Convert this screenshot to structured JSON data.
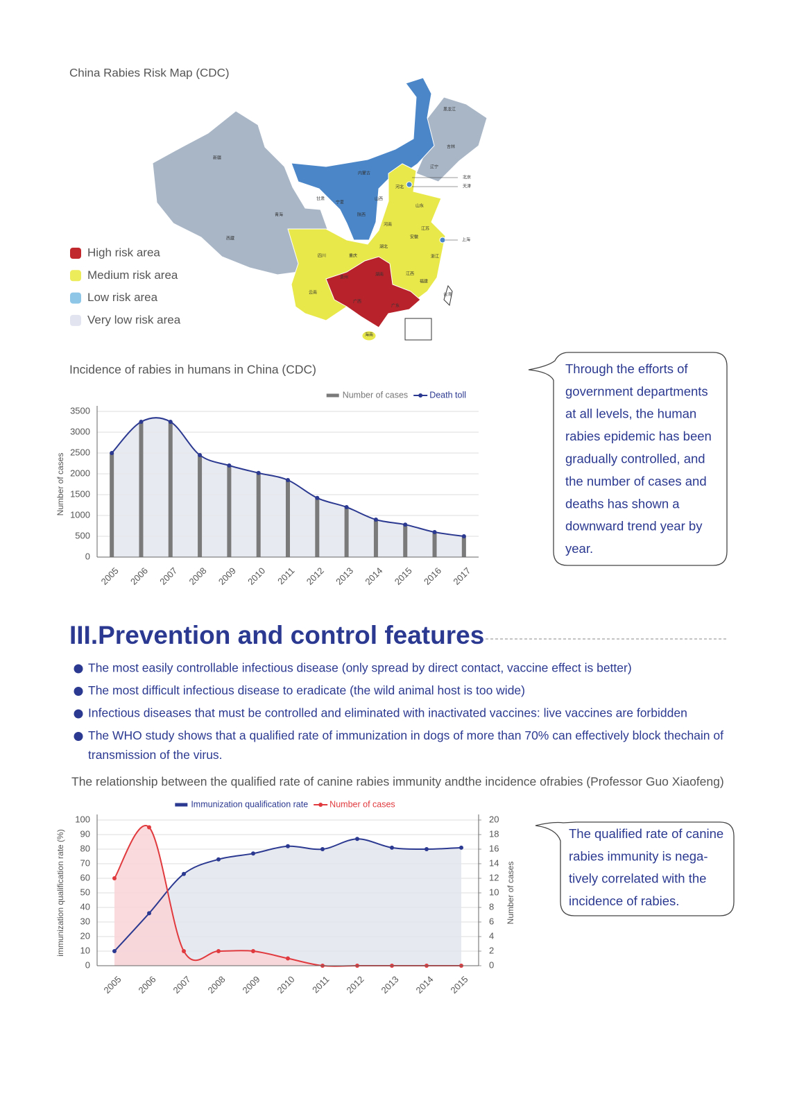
{
  "map": {
    "title": "China Rabies Risk Map (CDC)",
    "legend": [
      {
        "label": "High risk area",
        "color": "#c0282e"
      },
      {
        "label": "Medium risk area",
        "color": "#ecec5a"
      },
      {
        "label": "Low risk area",
        "color": "#8ec6e8"
      },
      {
        "label": "Very low risk area",
        "color": "#e2e4f0"
      }
    ],
    "provinces": [
      "黑龙江",
      "吉林",
      "辽宁",
      "北京",
      "天津",
      "河北",
      "内蒙古",
      "新疆",
      "甘肃",
      "宁夏",
      "青海",
      "西藏",
      "山西",
      "陕西",
      "山东",
      "河南",
      "江苏",
      "安徽",
      "上海",
      "湖北",
      "四川",
      "重庆",
      "浙江",
      "江西",
      "湖南",
      "福建",
      "贵州",
      "云南",
      "广西",
      "广东",
      "台湾",
      "海南"
    ]
  },
  "chart_data": [
    {
      "type": "combo",
      "title": "Incidence of rabies in humans in China (CDC)",
      "y_label": "Number of cases",
      "categories": [
        "2005",
        "2006",
        "2007",
        "2008",
        "2009",
        "2010",
        "2011",
        "2012",
        "2013",
        "2014",
        "2015",
        "2016",
        "2017"
      ],
      "series": [
        {
          "name": "Number of cases",
          "type": "bar",
          "color": "#7a7a7a",
          "values": [
            2500,
            3250,
            3250,
            2450,
            2200,
            2020,
            1850,
            1420,
            1200,
            900,
            780,
            600,
            500
          ]
        },
        {
          "name": "Death toll",
          "type": "line",
          "color": "#2b3990",
          "area_color": "#e4e6ef",
          "values": [
            2500,
            3250,
            3250,
            2450,
            2200,
            2020,
            1850,
            1420,
            1200,
            900,
            780,
            600,
            500
          ]
        }
      ],
      "ylim": [
        0,
        3500
      ],
      "yticks": [
        0,
        500,
        1000,
        1500,
        2000,
        2500,
        3000,
        3500
      ],
      "grid": true,
      "legend": "top-right"
    },
    {
      "type": "line",
      "title": "The relationship between the qualified rate of canine rabies immunity andthe incidence ofrabies (Professor Guo Xiaofeng)",
      "y_label": "immunization qualification rate (%)",
      "y2_label": "Number of cases",
      "categories": [
        "2005",
        "2006",
        "2007",
        "2008",
        "2009",
        "2010",
        "2011",
        "2012",
        "2013",
        "2014",
        "2015"
      ],
      "series": [
        {
          "name": "Immunization qualification rate",
          "type": "line",
          "legend_mark": "bar",
          "color": "#2b3990",
          "area_color": "#e3e5ee",
          "values": [
            10,
            36,
            63,
            73,
            77,
            82,
            80,
            87,
            81,
            80,
            81
          ]
        },
        {
          "name": "Number of cases",
          "type": "line",
          "axis": "y2",
          "color": "#e03a3e",
          "area_color": "#f9d3d6",
          "values": [
            12,
            19,
            2,
            2,
            2,
            1,
            0,
            0,
            0,
            0,
            0
          ]
        }
      ],
      "ylim": [
        0,
        100
      ],
      "yticks": [
        0,
        10,
        20,
        30,
        40,
        50,
        60,
        70,
        80,
        90,
        100
      ],
      "y2lim": [
        0,
        20
      ],
      "y2ticks": [
        0,
        2,
        4,
        6,
        8,
        10,
        12,
        14,
        16,
        18,
        20
      ],
      "grid": true,
      "legend": "top-center"
    }
  ],
  "callouts": [
    [
      "Through the efforts of",
      "government departments",
      "at all levels, the human",
      "rabies epidemic has been",
      "gradually controlled, and",
      "the number of cases and",
      "deaths has shown a",
      "downward trend year by",
      "year."
    ],
    [
      "The qualified rate of canine",
      "rabies immunity is nega-",
      "tively correlated with the",
      "incidence of rabies."
    ]
  ],
  "section": {
    "heading": "III.Prevention and control features",
    "bullets": [
      [
        "The most easily controllable infectious disease (only spread by direct contact, vaccine effect is better)"
      ],
      [
        "The most difficult infectious disease to eradicate (the wild animal host is too wide)"
      ],
      [
        "Infectious diseases that must be controlled and eliminated with inactivated vaccines: live vaccines are forbidden"
      ],
      [
        "The WHO study shows that a qualified rate of immunization in dogs of more than 70% can effectively block thechain of",
        "transmission of the virus."
      ]
    ]
  }
}
